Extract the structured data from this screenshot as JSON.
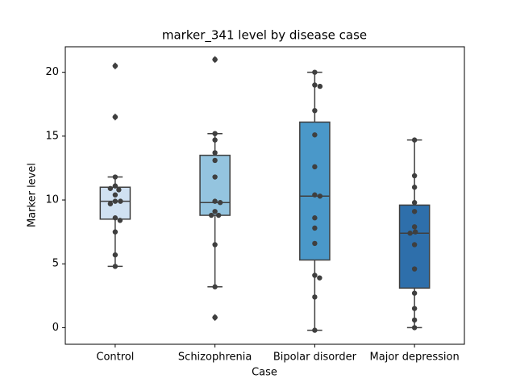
{
  "chart_data": {
    "type": "box",
    "title": "marker_341 level by disease case",
    "xlabel": "Case",
    "ylabel": "Marker level",
    "categories": [
      "Control",
      "Schizophrenia",
      "Bipolar disorder",
      "Major depression"
    ],
    "colors": [
      "#d0e1f2",
      "#94c4df",
      "#4a98c9",
      "#2e6fab"
    ],
    "boxes": [
      {
        "whisker_low": 4.8,
        "q1": 8.5,
        "median": 9.9,
        "q3": 11.0,
        "whisker_high": 11.8,
        "outliers": [
          16.5,
          20.5
        ]
      },
      {
        "whisker_low": 3.2,
        "q1": 8.8,
        "median": 9.8,
        "q3": 13.5,
        "whisker_high": 15.2,
        "outliers": [
          0.8,
          21.0
        ]
      },
      {
        "whisker_low": -0.2,
        "q1": 5.3,
        "median": 10.3,
        "q3": 16.1,
        "whisker_high": 20.0,
        "outliers": []
      },
      {
        "whisker_low": 0.0,
        "q1": 3.1,
        "median": 7.4,
        "q3": 9.6,
        "whisker_high": 14.7,
        "outliers": []
      }
    ],
    "points": [
      [
        20.5,
        16.5,
        11.8,
        11.1,
        10.8,
        10.9,
        10.4,
        9.9,
        9.9,
        9.7,
        8.6,
        8.4,
        7.5,
        5.7,
        4.8
      ],
      [
        21.0,
        15.2,
        14.7,
        13.7,
        13.1,
        11.8,
        9.9,
        9.8,
        9.1,
        8.8,
        8.8,
        6.5,
        3.2,
        0.8
      ],
      [
        20.0,
        19.0,
        18.9,
        17.0,
        15.1,
        12.6,
        10.4,
        10.3,
        8.6,
        7.8,
        6.6,
        4.1,
        3.9,
        2.4,
        -0.2
      ],
      [
        14.7,
        11.9,
        11.0,
        9.8,
        9.1,
        7.9,
        7.5,
        7.4,
        6.5,
        4.6,
        2.7,
        1.5,
        0.6,
        0.0
      ]
    ],
    "ylim": [
      -1.3,
      22.0
    ],
    "yticks": [
      0,
      5,
      10,
      15,
      20
    ],
    "grid": false
  }
}
